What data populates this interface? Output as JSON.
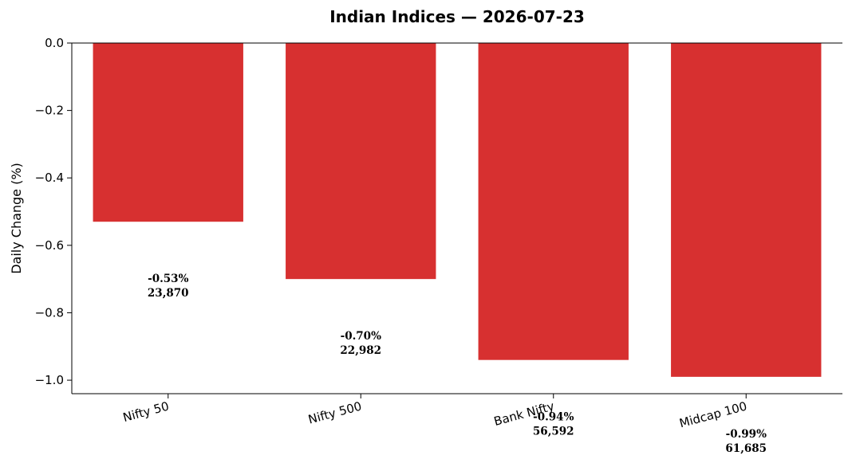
{
  "chart_data": {
    "type": "bar",
    "title": "Indian Indices — 2026-07-23",
    "xlabel": "",
    "ylabel": "Daily Change (%)",
    "ylim": [
      -1.04,
      0.0
    ],
    "yticks": [
      "0.0",
      "−0.2",
      "−0.4",
      "−0.6",
      "−0.8",
      "−1.0"
    ],
    "ytick_values": [
      0.0,
      -0.2,
      -0.4,
      -0.6,
      -0.8,
      -1.0
    ],
    "categories": [
      "Nifty 50",
      "Nifty 500",
      "Bank Nifty",
      "Midcap 100"
    ],
    "values": [
      -0.53,
      -0.7,
      -0.94,
      -0.99
    ],
    "value_labels": [
      "-0.53%",
      "-0.70%",
      "-0.94%",
      "-0.99%"
    ],
    "level_labels": [
      "23,870",
      "22,982",
      "56,592",
      "61,685"
    ],
    "bar_color": "#d73030",
    "grid": false,
    "legend": "none"
  }
}
